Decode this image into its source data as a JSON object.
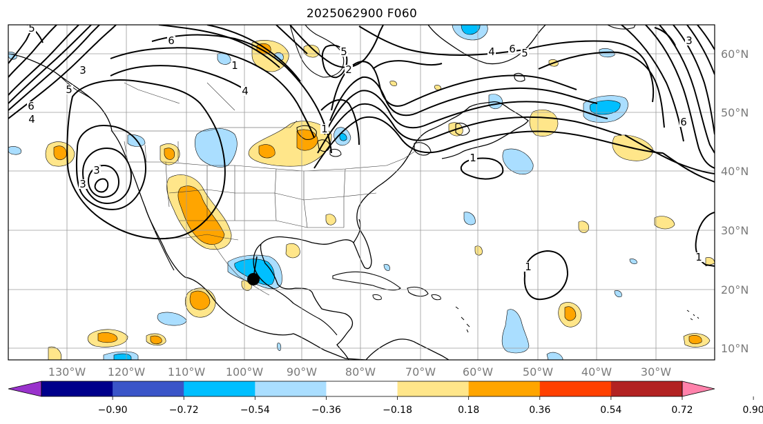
{
  "title": "2025062900 F060",
  "map": {
    "lon_labels": [
      "130°W",
      "120°W",
      "110°W",
      "100°W",
      "90°W",
      "80°W",
      "70°W",
      "60°W",
      "50°W",
      "40°W",
      "30°W"
    ],
    "lat_labels": [
      "60°N",
      "50°N",
      "40°N",
      "30°N",
      "20°N",
      "10°N"
    ],
    "contour_labels": [
      "5",
      "6",
      "4",
      "3",
      "5",
      "3",
      "6",
      "4",
      "5",
      "1",
      "3",
      "5",
      "6",
      "3",
      "1",
      "1",
      "1",
      "6",
      "4",
      "2",
      "1"
    ],
    "storm_marker": {
      "name": "storm-center"
    }
  },
  "colorbar": {
    "ticks": [
      "−0.90",
      "−0.72",
      "−0.54",
      "−0.36",
      "−0.18",
      "0.18",
      "0.36",
      "0.54",
      "0.72",
      "0.90"
    ],
    "colors": [
      "#9932cc",
      "#00008b",
      "#3a55c8",
      "#00bfff",
      "#aadeff",
      "#ffffff",
      "#ffe68a",
      "#ffa500",
      "#ff4000",
      "#b22222",
      "#ff82ab"
    ]
  }
}
